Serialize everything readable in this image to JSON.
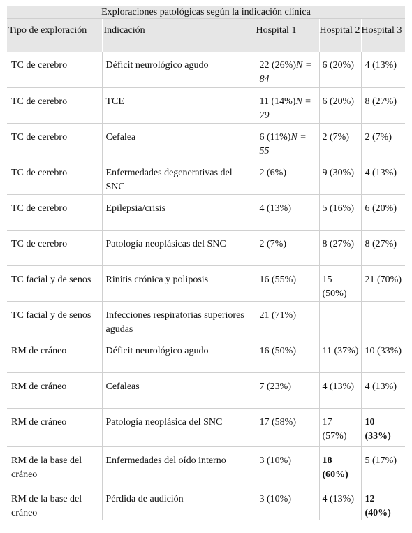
{
  "table": {
    "title": "Exploraciones patológicas según la indicación clínica",
    "headers": [
      "Tipo de exploración",
      "Indicación",
      "Hospital 1",
      "Hospital 2",
      "Hospital 3"
    ],
    "rows": [
      {
        "tipo": "TC de cerebro",
        "indicacion": "Déficit neurológico agudo",
        "h1": "22 (26%)",
        "h1_n": "N = 84",
        "h2": "6 (20%)",
        "h3": "4 (13%)",
        "bold2": false,
        "bold3": false
      },
      {
        "tipo": "TC de cerebro",
        "indicacion": "TCE",
        "h1": "11 (14%)",
        "h1_n": "N = 79",
        "h2": "6 (20%)",
        "h3": "8 (27%)",
        "bold2": false,
        "bold3": false
      },
      {
        "tipo": "TC de cerebro",
        "indicacion": "Cefalea",
        "h1": "6 (11%)",
        "h1_n": "N = 55",
        "h2": "2 (7%)",
        "h3": "2 (7%)",
        "bold2": false,
        "bold3": false
      },
      {
        "tipo": "TC de cerebro",
        "indicacion": "Enfermedades degenerativas del SNC",
        "h1": "2 (6%)",
        "h1_n": "",
        "h2": "9 (30%)",
        "h3": "4 (13%)",
        "bold2": false,
        "bold3": false
      },
      {
        "tipo": "TC de cerebro",
        "indicacion": "Epilepsia/crisis",
        "h1": "4 (13%)",
        "h1_n": "",
        "h2": "5 (16%)",
        "h3": "6 (20%)",
        "bold2": false,
        "bold3": false
      },
      {
        "tipo": "TC de cerebro",
        "indicacion": "Patología neoplásicas del SNC",
        "h1": "2 (7%)",
        "h1_n": "",
        "h2": "8 (27%)",
        "h3": "8 (27%)",
        "bold2": false,
        "bold3": false
      },
      {
        "tipo": "TC facial y de senos",
        "indicacion": "Rinitis crónica y poliposis",
        "h1": "16 (55%)",
        "h1_n": "",
        "h2": "15 (50%)",
        "h3": "21 (70%)",
        "bold2": false,
        "bold3": false
      },
      {
        "tipo": "TC facial y de senos",
        "indicacion": "Infecciones respiratorias superiores agudas",
        "h1": "21 (71%)",
        "h1_n": "",
        "h2": "",
        "h3": "",
        "bold2": false,
        "bold3": false
      },
      {
        "tipo": "RM de cráneo",
        "indicacion": "Déficit neurológico agudo",
        "h1": "16 (50%)",
        "h1_n": "",
        "h2": "11 (37%)",
        "h3": "10 (33%)",
        "bold2": false,
        "bold3": false
      },
      {
        "tipo": "RM de cráneo",
        "indicacion": "Cefaleas",
        "h1": "7 (23%)",
        "h1_n": "",
        "h2": "4 (13%)",
        "h3": "4 (13%)",
        "bold2": false,
        "bold3": false
      },
      {
        "tipo": "RM de cráneo",
        "indicacion": "Patología neoplásica del SNC",
        "h1": "17 (58%)",
        "h1_n": "",
        "h2": "17 (57%)",
        "h3": "10 (33%)",
        "bold2": false,
        "bold3": true
      },
      {
        "tipo": "RM de la base del cráneo",
        "indicacion": "Enfermedades del oído interno",
        "h1": "3 (10%)",
        "h1_n": "",
        "h2": "18 (60%)",
        "h3": "5 (17%)",
        "bold2": true,
        "bold3": false
      },
      {
        "tipo": "RM de la base del cráneo",
        "indicacion": "Pérdida de audición",
        "h1": "3 (10%)",
        "h1_n": "",
        "h2": "4 (13%)",
        "h3": "12 (40%)",
        "bold2": false,
        "bold3": true
      }
    ]
  }
}
